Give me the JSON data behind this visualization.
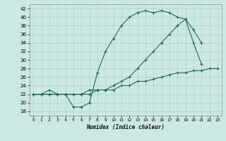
{
  "xlabel": "Humidex (Indice chaleur)",
  "xlim": [
    -0.5,
    23.5
  ],
  "ylim": [
    17,
    43
  ],
  "yticks": [
    18,
    20,
    22,
    24,
    26,
    28,
    30,
    32,
    34,
    36,
    38,
    40,
    42
  ],
  "xticks": [
    0,
    1,
    2,
    3,
    4,
    5,
    6,
    7,
    8,
    9,
    10,
    11,
    12,
    13,
    14,
    15,
    16,
    17,
    18,
    19,
    20,
    21,
    22,
    23
  ],
  "bg_color": "#cce8e2",
  "line_color": "#1a6b5a",
  "series1_y": [
    22,
    22,
    23,
    22,
    22,
    19,
    19,
    20,
    27,
    32,
    35,
    38,
    40,
    41,
    41.5,
    41,
    41.5,
    41,
    40,
    39.5,
    34,
    29,
    null,
    null
  ],
  "series2_y": [
    22,
    22,
    22,
    22,
    22,
    22,
    22,
    23,
    23,
    23,
    24,
    25,
    26,
    28,
    30,
    32,
    34,
    36,
    38,
    39.5,
    37,
    34,
    null,
    null
  ],
  "series3_y": [
    22,
    22,
    22,
    22,
    22,
    22,
    22,
    22,
    23,
    23,
    23,
    24,
    24,
    25,
    25,
    25.5,
    26,
    26.5,
    27,
    27,
    27.5,
    27.5,
    28,
    28
  ]
}
